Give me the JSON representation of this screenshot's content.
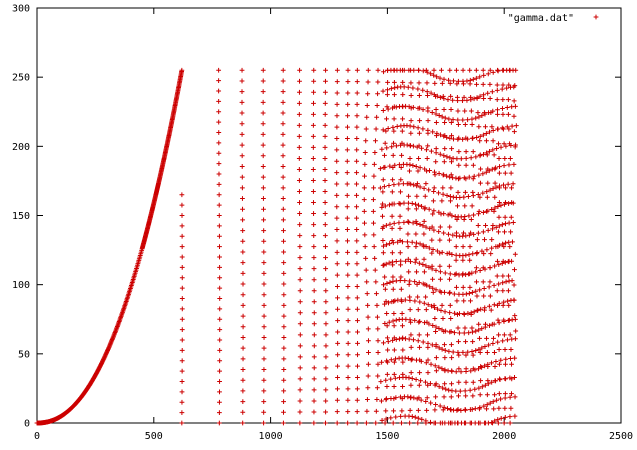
{
  "chart_data": {
    "type": "scatter",
    "legend": {
      "position": "top-right",
      "entries": [
        "\"gamma.dat\""
      ]
    },
    "series": [
      {
        "name": "\"gamma.dat\"",
        "color": "#cc0000",
        "marker": "plus"
      }
    ],
    "xlim": [
      0,
      2500
    ],
    "ylim": [
      0,
      300
    ],
    "xticks": [
      0,
      500,
      1000,
      1500,
      2000,
      2500
    ],
    "yticks": [
      0,
      50,
      100,
      150,
      200,
      250,
      300
    ],
    "grid": false,
    "point_generation": {
      "curve": {
        "x_range": [
          0,
          620
        ],
        "y_range": [
          0,
          255
        ],
        "count": 621
      },
      "columns": {
        "x_range": [
          620,
          2050
        ],
        "y_range": [
          0,
          255
        ]
      }
    }
  }
}
